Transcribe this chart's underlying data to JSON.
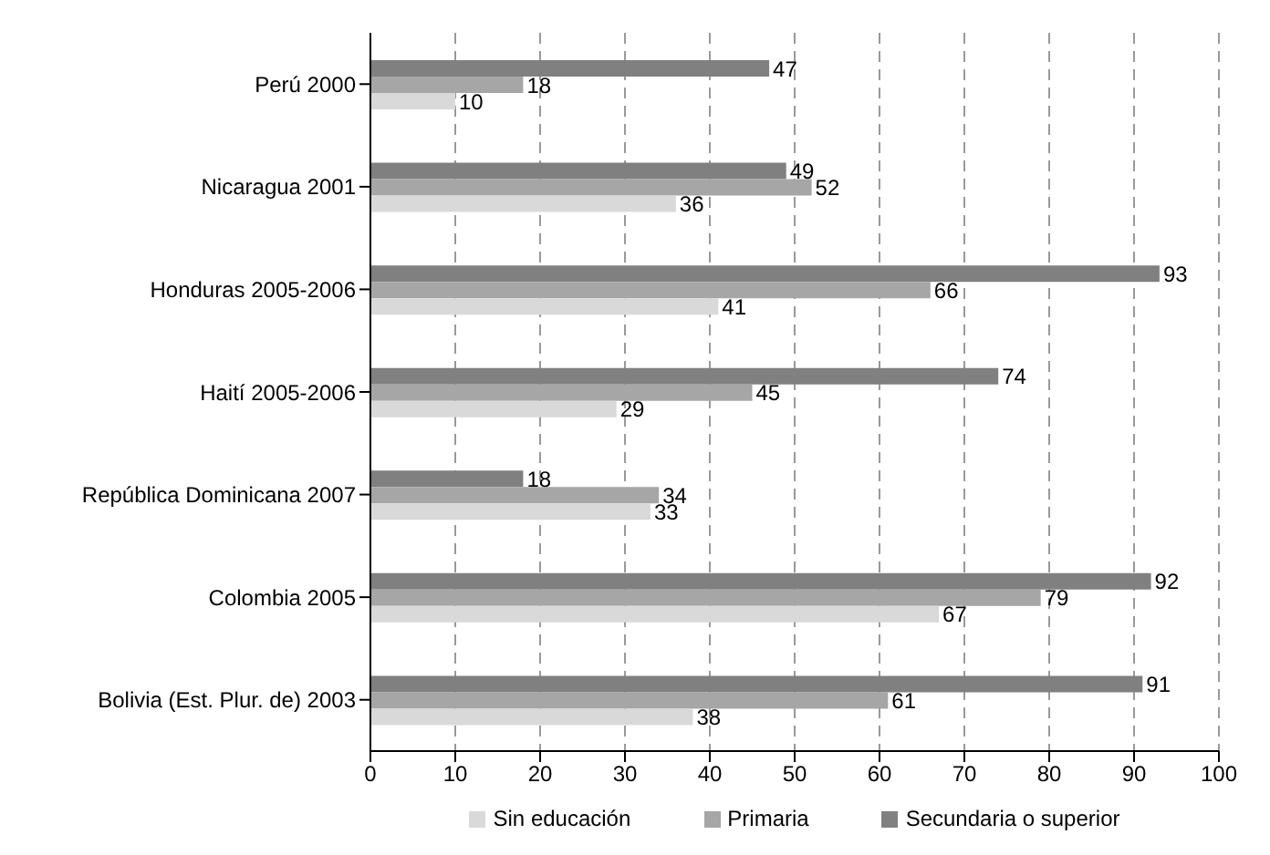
{
  "chart_data": {
    "type": "bar",
    "orientation": "horizontal",
    "categories": [
      "Perú 2000",
      "Nicaragua 2001",
      "Honduras 2005-2006",
      "Haití 2005-2006",
      "República Dominicana 2007",
      "Colombia 2005",
      "Bolivia (Est. Plur. de) 2003"
    ],
    "series": [
      {
        "name": "Sin educación",
        "color": "#d9d9d9",
        "values": [
          10,
          36,
          41,
          29,
          33,
          67,
          38
        ]
      },
      {
        "name": "Primaria",
        "color": "#a6a6a6",
        "values": [
          18,
          52,
          66,
          45,
          34,
          79,
          61
        ]
      },
      {
        "name": "Secundaria o superior",
        "color": "#808080",
        "values": [
          47,
          49,
          93,
          74,
          18,
          92,
          91
        ]
      }
    ],
    "xlim": [
      0,
      100
    ],
    "xticks": [
      0,
      10,
      20,
      30,
      40,
      50,
      60,
      70,
      80,
      90,
      100
    ],
    "grid": "x",
    "legend": "bottom",
    "data_labels": true
  }
}
